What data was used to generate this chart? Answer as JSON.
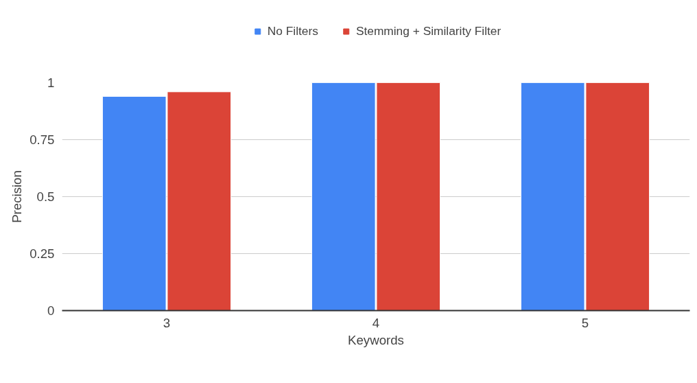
{
  "chart_data": {
    "type": "bar",
    "xlabel": "Keywords",
    "ylabel": "Precision",
    "categories": [
      "3",
      "4",
      "5"
    ],
    "series": [
      {
        "name": "No Filters",
        "color": "#4285f4",
        "values": [
          0.94,
          1,
          1
        ]
      },
      {
        "name": "Stemming + Similarity Filter",
        "color": "#db4437",
        "values": [
          0.96,
          1,
          1
        ]
      }
    ],
    "ylim": [
      0,
      1
    ],
    "yticks": [
      0,
      0.25,
      0.5,
      0.75,
      1
    ],
    "grid": "y",
    "legend": "top"
  }
}
